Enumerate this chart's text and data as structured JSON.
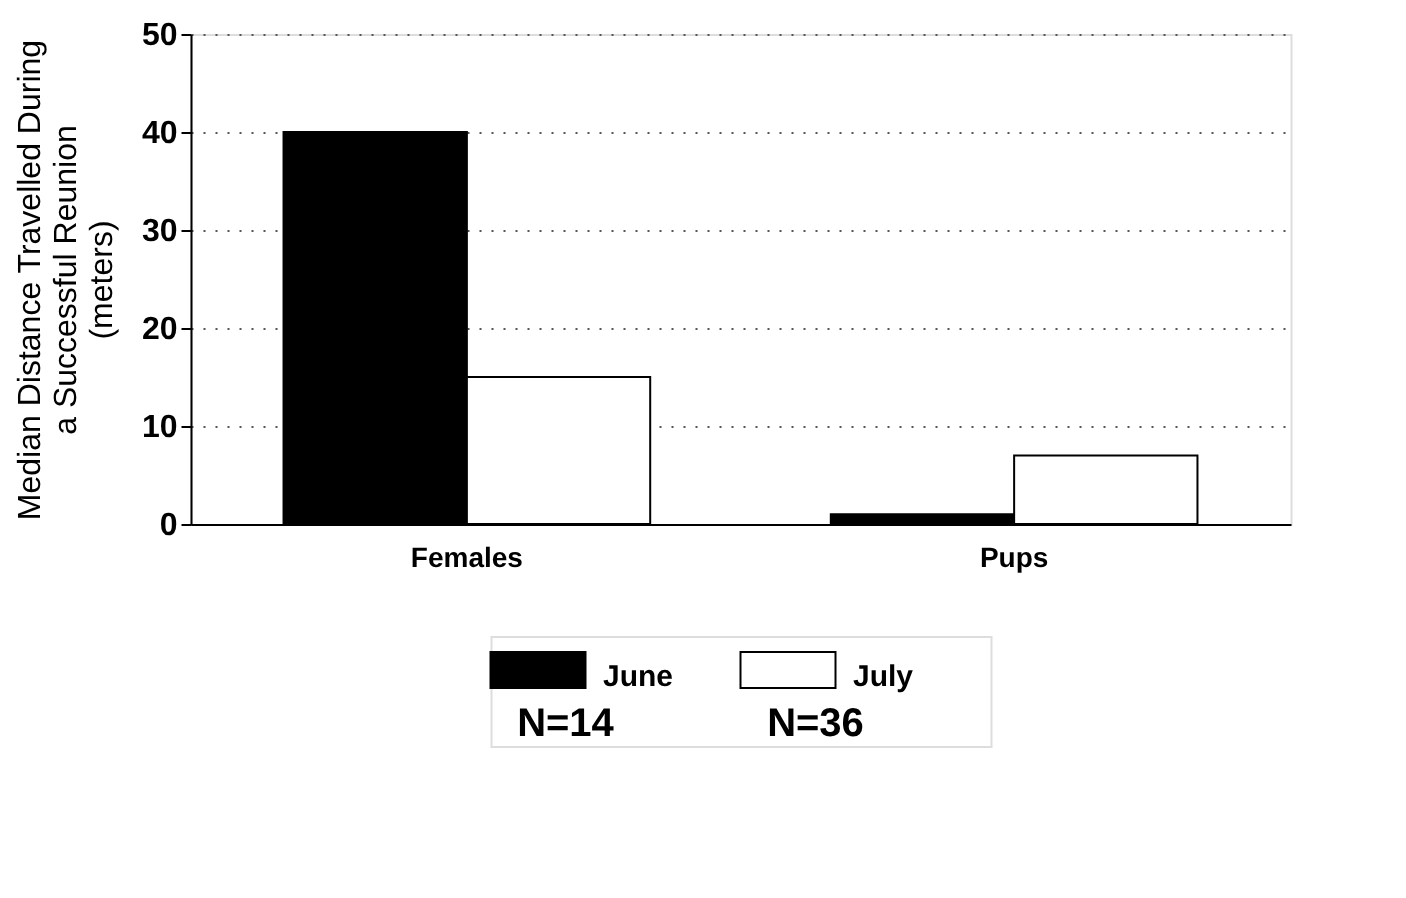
{
  "chart_data": {
    "type": "bar",
    "ylabel": "Median Distance Travelled During\na Successful Reunion\n(meters)",
    "categories": [
      "Females",
      "Pups"
    ],
    "series": [
      {
        "name": "June",
        "color": "#000000",
        "values": [
          40,
          1
        ]
      },
      {
        "name": "July",
        "color": "#ffffff",
        "values": [
          15,
          7
        ]
      }
    ],
    "annotations": [
      "N=14",
      "N=36"
    ],
    "ylim": [
      0,
      50
    ],
    "yticks": [
      0,
      10,
      20,
      30,
      40,
      50
    ],
    "grid": "y",
    "legend": "bottom"
  }
}
